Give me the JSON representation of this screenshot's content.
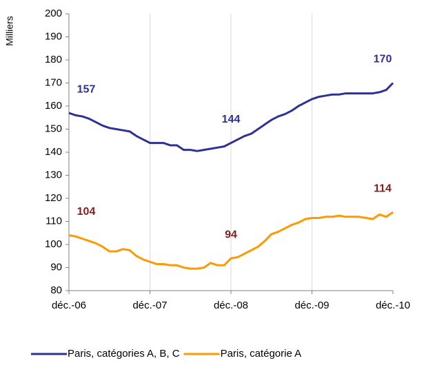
{
  "chart_data": {
    "type": "line",
    "y_label": "Milliers",
    "categories": [
      "déc.-06",
      null,
      null,
      null,
      null,
      null,
      null,
      null,
      null,
      null,
      null,
      null,
      "déc.-07",
      null,
      null,
      null,
      null,
      null,
      null,
      null,
      null,
      null,
      null,
      null,
      "déc.-08",
      null,
      null,
      null,
      null,
      null,
      null,
      null,
      null,
      null,
      null,
      null,
      "déc.-09",
      null,
      null,
      null,
      null,
      null,
      null,
      null,
      null,
      null,
      null,
      null,
      "déc.-10"
    ],
    "series": [
      {
        "name": "Paris, catégories A, B, C",
        "color": "#2e3192",
        "values": [
          157,
          156,
          155.5,
          154.5,
          153,
          151.5,
          150.5,
          150,
          149.5,
          149,
          147,
          145.5,
          144,
          144,
          144,
          143,
          143,
          141,
          141,
          140.5,
          141,
          141.5,
          142,
          142.5,
          144,
          145.5,
          147,
          148,
          150,
          152,
          154,
          155.5,
          156.5,
          158,
          160,
          161.5,
          163,
          164,
          164.5,
          165,
          165,
          165.5,
          165.5,
          165.5,
          165.5,
          165.5,
          166,
          167,
          170
        ],
        "value_labels": [
          "157",
          null,
          null,
          null,
          null,
          null,
          null,
          null,
          null,
          null,
          null,
          null,
          null,
          null,
          null,
          null,
          null,
          null,
          null,
          null,
          null,
          null,
          null,
          null,
          "144",
          null,
          null,
          null,
          null,
          null,
          null,
          null,
          null,
          null,
          null,
          null,
          null,
          null,
          null,
          null,
          null,
          null,
          null,
          null,
          null,
          null,
          null,
          null,
          "170"
        ]
      },
      {
        "name": "Paris, catégorie A",
        "color": "#ff9900",
        "values": [
          104,
          103.5,
          102.5,
          101.5,
          100.5,
          99,
          97,
          97,
          98,
          97.5,
          95,
          93.5,
          92.5,
          91.5,
          91.5,
          91,
          91,
          90,
          89.5,
          89.5,
          90,
          92,
          91,
          91,
          94,
          94.5,
          96,
          97.5,
          99,
          101.5,
          104.5,
          105.5,
          107,
          108.5,
          109.5,
          111,
          111.5,
          111.5,
          112,
          112,
          112.5,
          112,
          112,
          112,
          111.5,
          111,
          113,
          112,
          114
        ],
        "value_labels": [
          "104",
          null,
          null,
          null,
          null,
          null,
          null,
          null,
          null,
          null,
          null,
          null,
          null,
          null,
          null,
          null,
          null,
          null,
          null,
          null,
          null,
          null,
          null,
          null,
          "94",
          null,
          null,
          null,
          null,
          null,
          null,
          null,
          null,
          null,
          null,
          null,
          null,
          null,
          null,
          null,
          null,
          null,
          null,
          null,
          null,
          null,
          null,
          null,
          "114"
        ]
      }
    ],
    "label_colors": [
      "#2e3192",
      "#7f1f1f"
    ],
    "ylim": [
      80,
      200
    ],
    "yticks": [
      80,
      90,
      100,
      110,
      120,
      130,
      140,
      150,
      160,
      170,
      180,
      190,
      200
    ],
    "grid": "x",
    "legend": "bottom"
  }
}
